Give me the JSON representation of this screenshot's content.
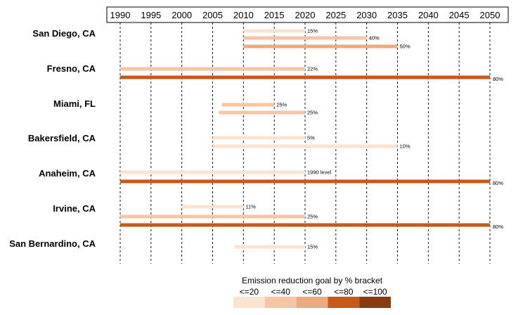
{
  "chart_data": {
    "type": "bar",
    "subtype": "horizontal-timeline",
    "x_ticks": [
      1990,
      1995,
      2000,
      2005,
      2010,
      2015,
      2020,
      2025,
      2030,
      2035,
      2040,
      2045,
      2050
    ],
    "xlim": [
      1990,
      2050
    ],
    "x_axis_position": "top",
    "grid": "vertical-dashed",
    "categories": [
      "San Diego, CA",
      "Fresno, CA",
      "Miami, FL",
      "Bakersfield, CA",
      "Anaheim, CA",
      "Irvine, CA",
      "San Bernardino, CA"
    ],
    "bars": [
      {
        "city": "San Diego, CA",
        "start": 2010,
        "end": 2020,
        "label": "15%",
        "bracket": 0
      },
      {
        "city": "San Diego, CA",
        "start": 2010,
        "end": 2030,
        "label": "40%",
        "bracket": 1
      },
      {
        "city": "San Diego, CA",
        "start": 2010,
        "end": 2035,
        "label": "50%",
        "bracket": 2
      },
      {
        "city": "Fresno, CA",
        "start": 1990,
        "end": 2020,
        "label": "22%",
        "bracket": 1
      },
      {
        "city": "Fresno, CA",
        "start": 1990,
        "end": 2050,
        "label": "80%",
        "bracket": 3
      },
      {
        "city": "Miami, FL",
        "start": 2006.5,
        "end": 2015,
        "label": "25%",
        "bracket": 1
      },
      {
        "city": "Miami, FL",
        "start": 2006,
        "end": 2020,
        "label": "25%",
        "bracket": 1
      },
      {
        "city": "Bakersfield, CA",
        "start": 2005,
        "end": 2020,
        "label": "5%",
        "bracket": 0
      },
      {
        "city": "Bakersfield, CA",
        "start": 2005,
        "end": 2035,
        "label": "10%",
        "bracket": 0
      },
      {
        "city": "Anaheim, CA",
        "start": 1990,
        "end": 2020,
        "label": "1990 level",
        "bracket": 0
      },
      {
        "city": "Anaheim, CA",
        "start": 1990,
        "end": 2050,
        "label": "80%",
        "bracket": 3
      },
      {
        "city": "Irvine, CA",
        "start": 2000,
        "end": 2010,
        "label": "11%",
        "bracket": 0
      },
      {
        "city": "Irvine, CA",
        "start": 1990,
        "end": 2020,
        "label": "25%",
        "bracket": 1
      },
      {
        "city": "Irvine, CA",
        "start": 1990,
        "end": 2050,
        "label": "80%",
        "bracket": 3
      },
      {
        "city": "San Bernardino, CA",
        "start": 2008.5,
        "end": 2020,
        "label": "15%",
        "bracket": 0
      }
    ],
    "legend": {
      "title": "Emission reduction goal by % bracket",
      "position": "bottom-center",
      "items": [
        {
          "label": "<=20",
          "color": "#fbe3d2"
        },
        {
          "label": "<=40",
          "color": "#f5c5a6"
        },
        {
          "label": "<=60",
          "color": "#ecaa80"
        },
        {
          "label": "<=80",
          "color": "#c55a1d"
        },
        {
          "label": "<=100",
          "color": "#873b10"
        }
      ]
    }
  }
}
